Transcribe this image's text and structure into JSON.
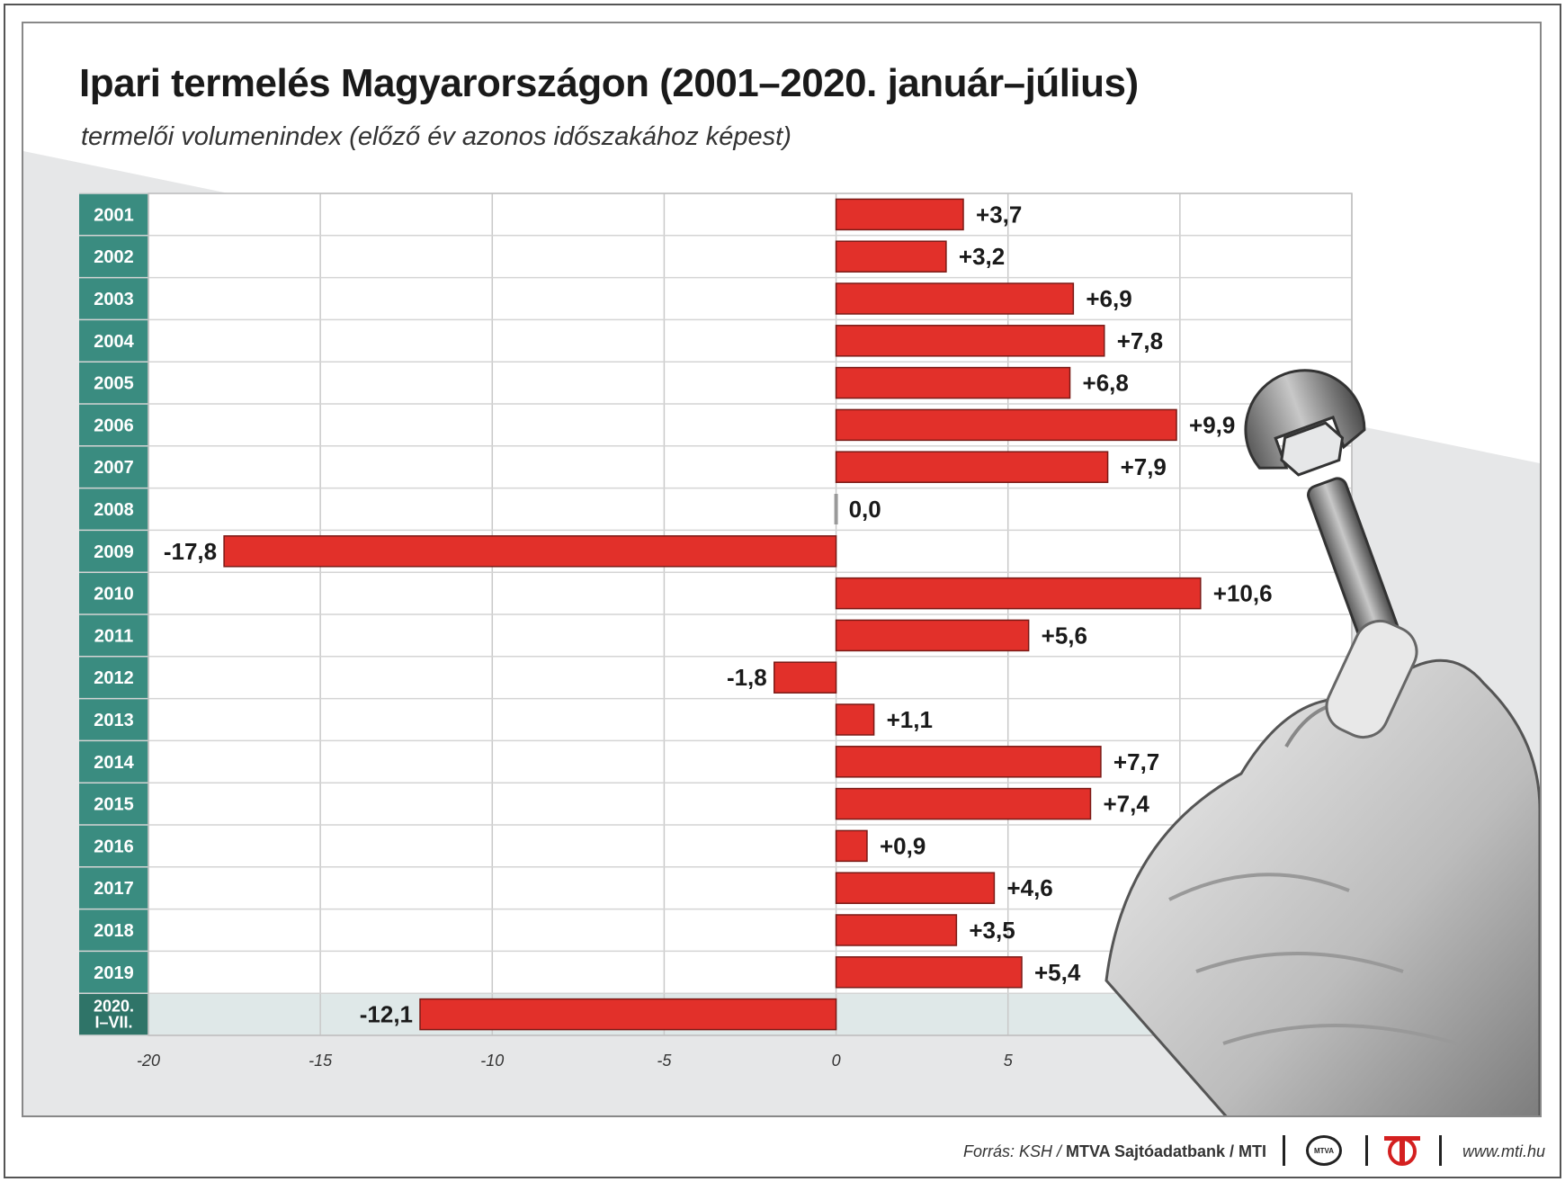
{
  "header": {
    "title": "Ipari termelés Magyarországon (2001–2020. január–július)",
    "subtitle": "termelői volumenindex (előző év azonos időszakához képest)"
  },
  "chart_data": {
    "type": "bar",
    "orientation": "horizontal",
    "categories": [
      "2001",
      "2002",
      "2003",
      "2004",
      "2005",
      "2006",
      "2007",
      "2008",
      "2009",
      "2010",
      "2011",
      "2012",
      "2013",
      "2014",
      "2015",
      "2016",
      "2017",
      "2018",
      "2019",
      "2020. I–VII."
    ],
    "values": [
      3.7,
      3.2,
      6.9,
      7.8,
      6.8,
      9.9,
      7.9,
      0.0,
      -17.8,
      10.6,
      5.6,
      -1.8,
      1.1,
      7.7,
      7.4,
      0.9,
      4.6,
      3.5,
      5.4,
      -12.1
    ],
    "value_labels": [
      "+3,7",
      "+3,2",
      "+6,9",
      "+7,8",
      "+6,8",
      "+9,9",
      "+7,9",
      "0,0",
      "-17,8",
      "+10,6",
      "+5,6",
      "-1,8",
      "+1,1",
      "+7,7",
      "+7,4",
      "+0,9",
      "+4,6",
      "+3,5",
      "+5,4",
      "-12,1"
    ],
    "x_ticks": [
      "-20",
      "-15",
      "-10",
      "-5",
      "0",
      "5"
    ],
    "xlim": [
      -20,
      15
    ],
    "grid": true,
    "bar_color": "#e2302a",
    "label_column_color": "#3a8c80"
  },
  "footer": {
    "source_prefix": "Forrás: KSH / ",
    "source_bold": "MTVA Sajtóadatbank / MTI",
    "logo_tv_text": "MTVA",
    "url": "www.mti.hu"
  }
}
